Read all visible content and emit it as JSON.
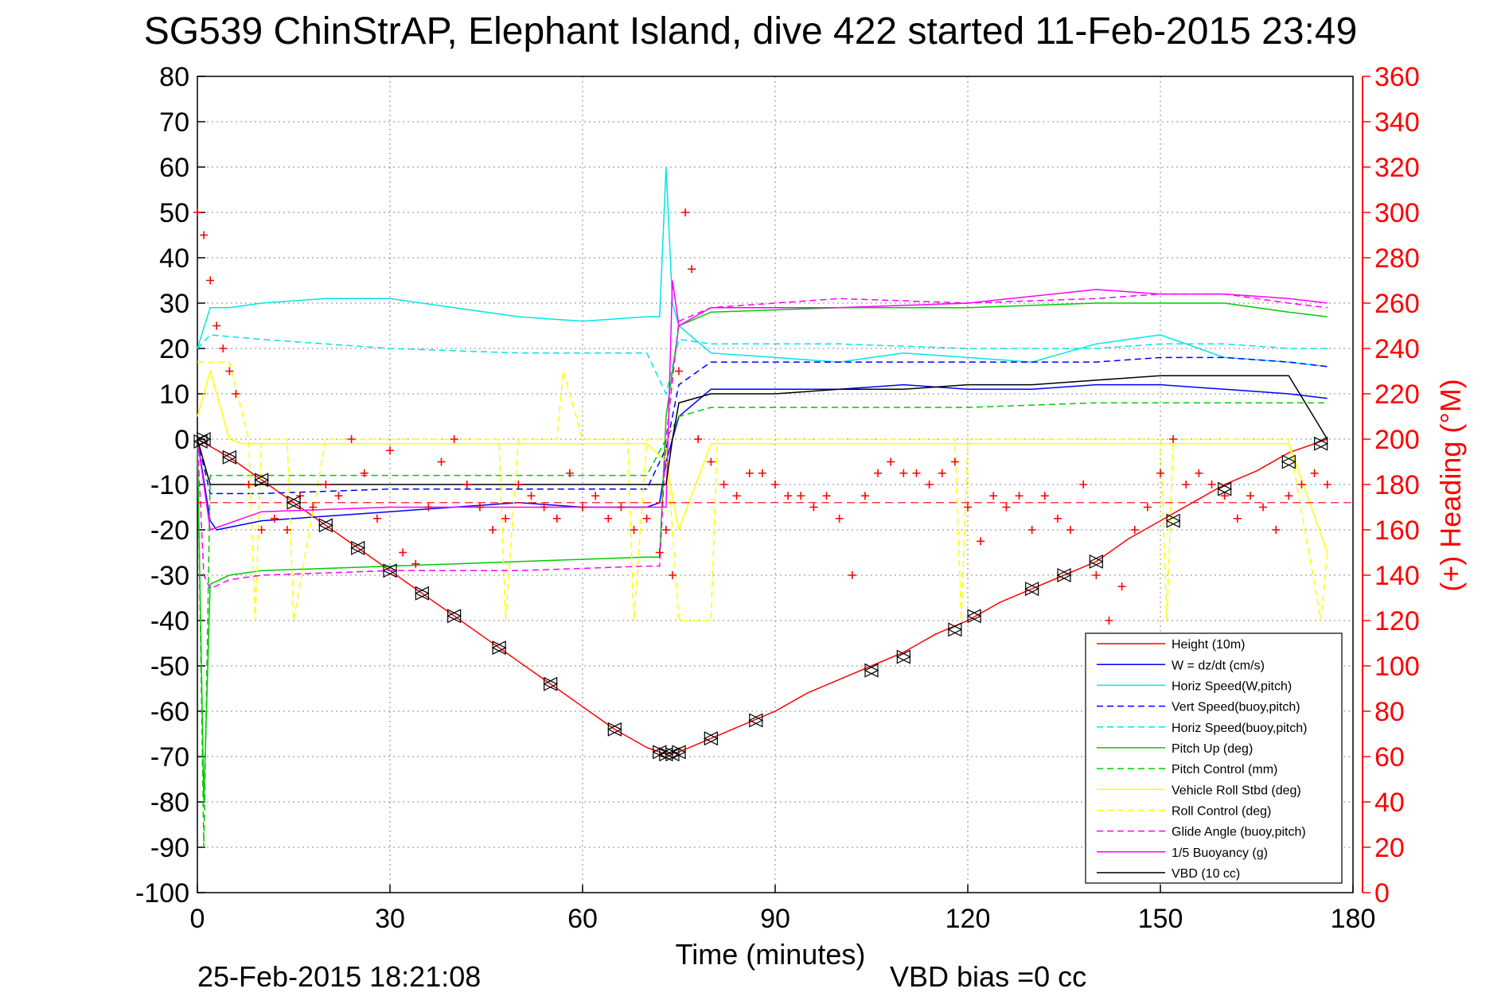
{
  "chart_data": {
    "type": "line",
    "title": "SG539 ChinStrAP, Elephant Island, dive 422 started 11-Feb-2015 23:49",
    "xlabel": "Time (minutes)",
    "ylabel": "",
    "y2label": "(+) Heading (°M)",
    "footer_left": "25-Feb-2015 18:21:08",
    "footer_right": "VBD bias =0 cc",
    "xlim": [
      0,
      180
    ],
    "ylim": [
      -100,
      80
    ],
    "y2lim": [
      0,
      360
    ],
    "xticks": [
      0,
      30,
      60,
      90,
      120,
      150,
      180
    ],
    "yticks": [
      80,
      70,
      60,
      50,
      40,
      30,
      20,
      10,
      0,
      -10,
      -20,
      -30,
      -40,
      -50,
      -60,
      -70,
      -80,
      -90,
      -100
    ],
    "y2ticks": [
      360,
      340,
      320,
      300,
      280,
      260,
      240,
      220,
      200,
      180,
      160,
      140,
      120,
      100,
      80,
      60,
      40,
      20,
      0
    ],
    "grid": true,
    "legend_position": "bottom-right",
    "series": [
      {
        "name": "Height (10m)",
        "color": "#ff0000",
        "style": "solid",
        "x": [
          0,
          5,
          10,
          15,
          20,
          25,
          30,
          35,
          40,
          45,
          50,
          55,
          60,
          65,
          70,
          73,
          75,
          80,
          85,
          90,
          95,
          100,
          105,
          110,
          115,
          120,
          125,
          130,
          135,
          140,
          145,
          150,
          155,
          160,
          165,
          170,
          176
        ],
        "y": [
          0,
          -4,
          -9,
          -14,
          -19,
          -24,
          -29,
          -34,
          -39,
          -44,
          -49,
          -54,
          -59,
          -64,
          -68,
          -69.5,
          -69,
          -66,
          -63,
          -60,
          -56,
          -53,
          -50,
          -47,
          -43,
          -40,
          -36,
          -33,
          -30,
          -27,
          -22,
          -18,
          -14,
          -10,
          -7,
          -3,
          0
        ]
      },
      {
        "name": "W = dz/dt (cm/s)",
        "color": "#0000ff",
        "style": "solid",
        "x": [
          0,
          2,
          3,
          10,
          20,
          30,
          40,
          50,
          60,
          70,
          72,
          73,
          75,
          80,
          90,
          100,
          110,
          120,
          130,
          140,
          150,
          160,
          170,
          176
        ],
        "y": [
          0,
          -18,
          -20,
          -18,
          -17,
          -16,
          -15,
          -14,
          -15,
          -15,
          -14,
          -5,
          5,
          11,
          11,
          11,
          12,
          11,
          11,
          12,
          12,
          11,
          10,
          9
        ]
      },
      {
        "name": "Horiz Speed(W,pitch)",
        "color": "#00e5e5",
        "style": "solid",
        "x": [
          0,
          2,
          5,
          10,
          20,
          30,
          40,
          50,
          60,
          70,
          72,
          73,
          74,
          75,
          80,
          90,
          100,
          110,
          120,
          130,
          140,
          150,
          160,
          170,
          176
        ],
        "y": [
          20,
          29,
          29,
          30,
          31,
          31,
          29,
          27,
          26,
          27,
          27,
          60,
          30,
          25,
          19,
          18,
          17,
          19,
          18,
          17,
          21,
          23,
          18,
          17,
          16
        ]
      },
      {
        "name": "Vert Speed(buoy,pitch)",
        "color": "#0000ff",
        "style": "dashed",
        "x": [
          0,
          2,
          10,
          30,
          50,
          70,
          73,
          75,
          80,
          100,
          120,
          140,
          150,
          160,
          170,
          176
        ],
        "y": [
          0,
          -12,
          -12,
          -11,
          -11,
          -11,
          -2,
          12,
          17,
          17,
          17,
          17,
          18,
          18,
          17,
          16
        ]
      },
      {
        "name": "Horiz Speed(buoy,pitch)",
        "color": "#00e5e5",
        "style": "dashed",
        "x": [
          0,
          2,
          10,
          30,
          50,
          70,
          73,
          75,
          80,
          100,
          120,
          140,
          150,
          160,
          170,
          176
        ],
        "y": [
          20,
          23,
          22,
          20,
          19,
          19,
          10,
          22,
          21,
          21,
          20,
          20,
          21,
          21,
          20,
          20
        ]
      },
      {
        "name": "Pitch Up (deg)",
        "color": "#00cc00",
        "style": "solid",
        "x": [
          0,
          1,
          2,
          5,
          10,
          30,
          50,
          70,
          72,
          73,
          75,
          80,
          100,
          120,
          140,
          150,
          160,
          170,
          176
        ],
        "y": [
          0,
          -80,
          -32,
          -30,
          -29,
          -28,
          -27,
          -26,
          -26,
          5,
          25,
          28,
          29,
          29,
          30,
          30,
          30,
          28,
          27
        ]
      },
      {
        "name": "Pitch Control (mm)",
        "color": "#00cc00",
        "style": "dashed",
        "x": [
          0,
          1,
          2,
          10,
          30,
          50,
          70,
          73,
          75,
          80,
          100,
          120,
          140,
          160,
          176
        ],
        "y": [
          0,
          -90,
          -8,
          -8,
          -8,
          -8,
          -8,
          0,
          5,
          7,
          7,
          7,
          8,
          8,
          8
        ]
      },
      {
        "name": "Vehicle Roll Stbd (deg)",
        "color": "#ffff00",
        "style": "solid",
        "x": [
          0,
          2,
          5,
          7,
          10,
          20,
          30,
          40,
          50,
          60,
          70,
          73,
          75,
          80,
          90,
          100,
          110,
          120,
          130,
          140,
          150,
          160,
          170,
          176
        ],
        "y": [
          5,
          15,
          0,
          -1,
          -1,
          -1,
          -1,
          -1,
          -1,
          -1,
          -1,
          -5,
          -20,
          -1,
          -1,
          -1,
          -1,
          -1,
          -1,
          -1,
          -1,
          -1,
          -1,
          -25
        ]
      },
      {
        "name": "Roll Control (deg)",
        "color": "#ffff00",
        "style": "dashed",
        "x": [
          0,
          2,
          5,
          8,
          9,
          10,
          14,
          15,
          20,
          30,
          40,
          47,
          48,
          50,
          56,
          57,
          60,
          67,
          68,
          70,
          73,
          75,
          80,
          81,
          90,
          100,
          110,
          118,
          119,
          120,
          150,
          151,
          152,
          160,
          170,
          175,
          176
        ],
        "y": [
          17,
          17,
          17,
          0,
          -40,
          0,
          0,
          -40,
          0,
          0,
          0,
          0,
          -40,
          0,
          0,
          15,
          0,
          0,
          -40,
          0,
          0,
          -40,
          -40,
          0,
          0,
          0,
          0,
          0,
          -40,
          0,
          0,
          -40,
          0,
          0,
          0,
          -40,
          -25
        ]
      },
      {
        "name": "Glide Angle (buoy,pitch)",
        "color": "#ff00ff",
        "style": "dashed",
        "x": [
          0,
          1,
          2,
          5,
          10,
          30,
          50,
          70,
          72,
          73,
          75,
          80,
          100,
          120,
          140,
          150,
          160,
          170,
          176
        ],
        "y": [
          0,
          -30,
          -33,
          -31,
          -30,
          -29,
          -29,
          -28,
          -28,
          0,
          26,
          29,
          31,
          30,
          31,
          32,
          32,
          30,
          29
        ]
      },
      {
        "name": "1/5 Buoyancy (g)",
        "color": "#ff00ff",
        "style": "solid",
        "x": [
          0,
          2,
          10,
          30,
          50,
          70,
          73,
          74,
          75,
          80,
          100,
          120,
          140,
          150,
          160,
          170,
          176
        ],
        "y": [
          0,
          -20,
          -16,
          -15,
          -15,
          -15,
          -15,
          35,
          25,
          29,
          29,
          30,
          33,
          32,
          32,
          31,
          30
        ]
      },
      {
        "name": "VBD (10 cc)",
        "color": "#000000",
        "style": "solid",
        "x": [
          0,
          1,
          2,
          10,
          30,
          50,
          70,
          73,
          74,
          75,
          80,
          90,
          100,
          110,
          120,
          130,
          140,
          150,
          160,
          170,
          176
        ],
        "y": [
          0,
          -5,
          -10,
          -10,
          -10,
          -10,
          -10,
          -10,
          0,
          8,
          10,
          10,
          11,
          11,
          12,
          12,
          13,
          14,
          14,
          14,
          0
        ]
      }
    ],
    "heading": {
      "name": "(+) Heading",
      "color": "#ff0000",
      "x": [
        0,
        1,
        2,
        3,
        4,
        5,
        6,
        8,
        10,
        12,
        14,
        16,
        18,
        20,
        22,
        24,
        26,
        28,
        30,
        32,
        34,
        36,
        38,
        40,
        42,
        44,
        46,
        48,
        50,
        52,
        54,
        56,
        58,
        60,
        62,
        64,
        66,
        68,
        70,
        72,
        73,
        74,
        75,
        76,
        77,
        78,
        80,
        82,
        84,
        86,
        88,
        90,
        92,
        94,
        96,
        98,
        100,
        102,
        104,
        106,
        108,
        110,
        112,
        114,
        116,
        118,
        120,
        122,
        124,
        126,
        128,
        130,
        132,
        134,
        136,
        138,
        140,
        142,
        144,
        146,
        148,
        150,
        152,
        154,
        156,
        158,
        160,
        162,
        164,
        166,
        168,
        170,
        172,
        174,
        176
      ],
      "y": [
        300,
        290,
        270,
        250,
        240,
        230,
        220,
        180,
        160,
        165,
        160,
        175,
        170,
        180,
        175,
        200,
        185,
        165,
        195,
        150,
        145,
        170,
        190,
        200,
        180,
        170,
        160,
        165,
        180,
        175,
        170,
        165,
        185,
        170,
        175,
        165,
        170,
        160,
        165,
        150,
        160,
        140,
        230,
        300,
        275,
        200,
        190,
        180,
        175,
        185,
        185,
        180,
        175,
        175,
        170,
        175,
        165,
        140,
        175,
        185,
        190,
        185,
        185,
        180,
        185,
        190,
        170,
        155,
        175,
        170,
        175,
        160,
        175,
        165,
        160,
        180,
        140,
        120,
        135,
        160,
        170,
        185,
        200,
        180,
        185,
        180,
        175,
        165,
        175,
        170,
        160,
        175,
        180,
        185,
        180
      ]
    },
    "heading_mean_deg": 172,
    "depth_markers": {
      "x": [
        0.5,
        1,
        5,
        10,
        15,
        20,
        25,
        30,
        35,
        40,
        47,
        55,
        65,
        72,
        73,
        74,
        75,
        80,
        87,
        105,
        110,
        118,
        121,
        130,
        135,
        140,
        152,
        160,
        170,
        175
      ],
      "y": [
        -0.5,
        0,
        -4,
        -9,
        -14,
        -19,
        -24,
        -29,
        -34,
        -39,
        -46,
        -54,
        -64,
        -69,
        -69.5,
        -69.5,
        -69,
        -66,
        -62,
        -51,
        -48,
        -42,
        -39,
        -33,
        -30,
        -27,
        -18,
        -11,
        -5,
        -1
      ]
    }
  }
}
